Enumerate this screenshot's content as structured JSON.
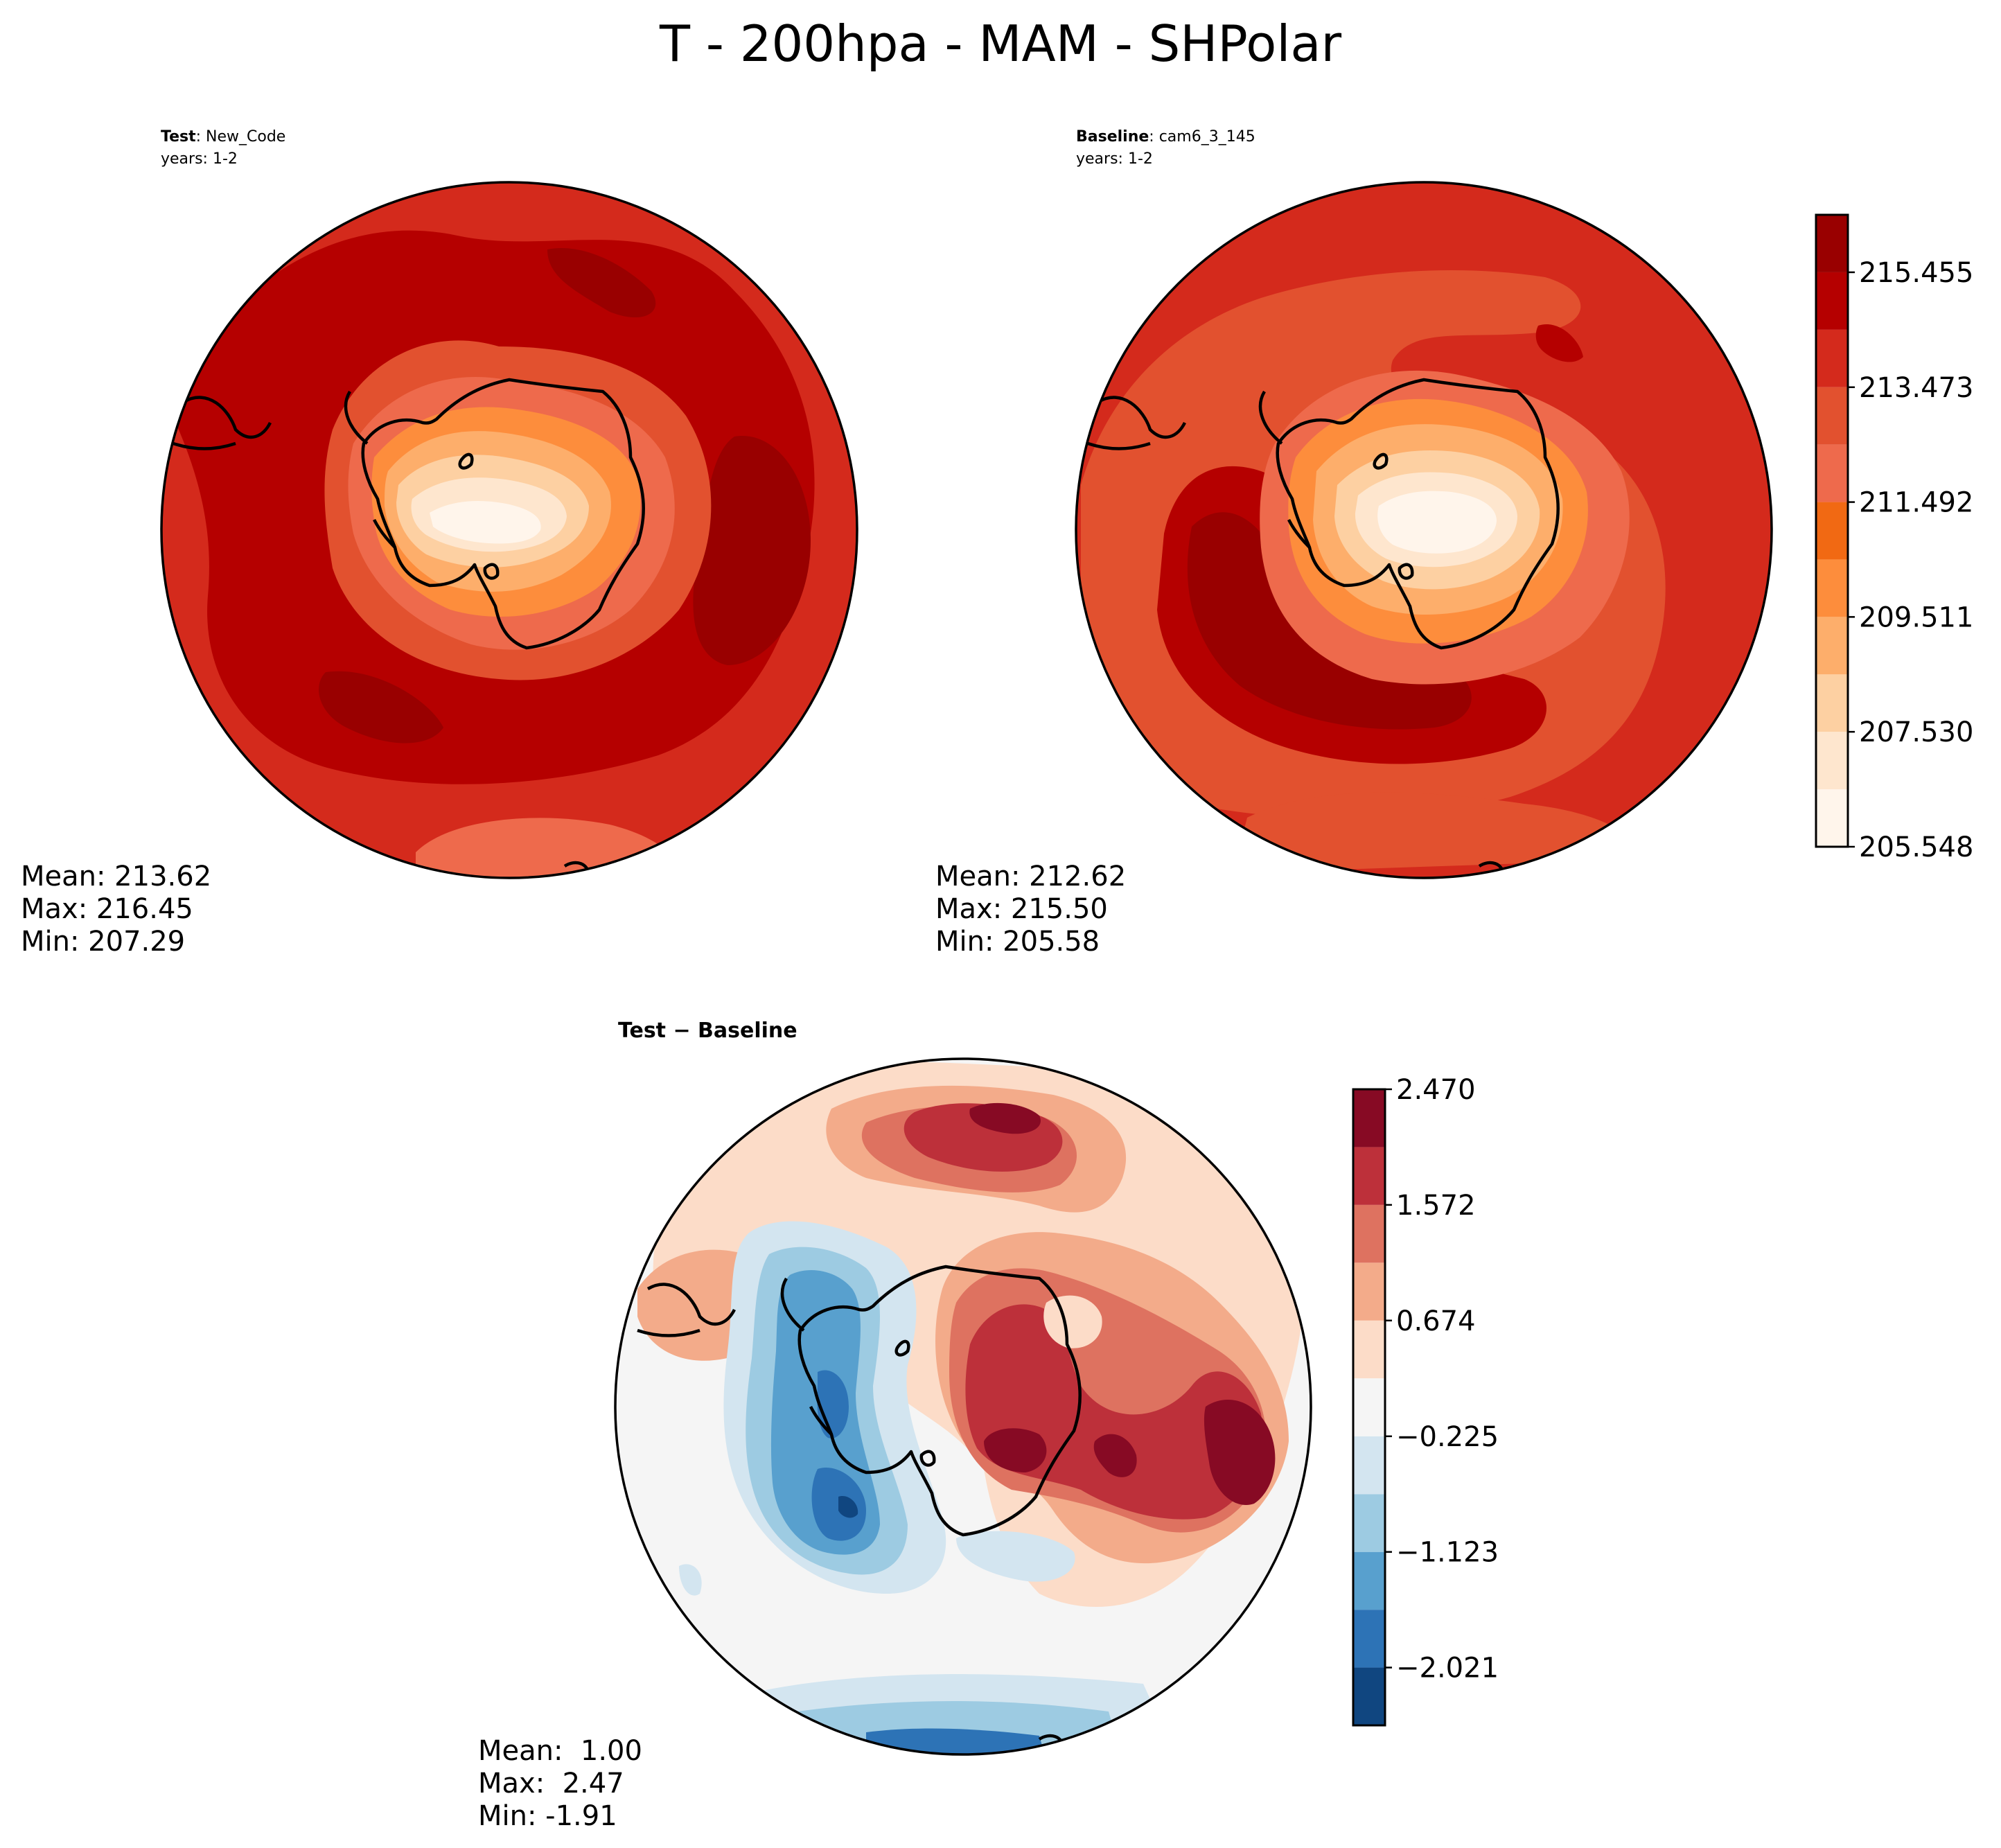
{
  "figure": {
    "title": "T - 200hpa - MAM - SHPolar"
  },
  "panels": {
    "test": {
      "label_bold": "Test",
      "label_rest": ": New_Code",
      "years": "years: 1-2",
      "stats": {
        "mean": "Mean: 213.62",
        "max": "Max: 216.45",
        "min": "Min: 207.29"
      }
    },
    "baseline": {
      "label_bold": "Baseline",
      "label_rest": ": cam6_3_145",
      "years": "years: 1-2",
      "stats": {
        "mean": "Mean: 212.62",
        "max": "Max: 215.50",
        "min": "Min: 205.58"
      }
    },
    "diff": {
      "label": "Test − Baseline",
      "stats": {
        "mean": "Mean:  1.00",
        "max": "Max:  2.47",
        "min": "Min: -1.91"
      }
    }
  },
  "colorbars": {
    "absolute": {
      "levels": [
        205.548,
        206.539,
        207.53,
        208.52,
        209.511,
        210.502,
        211.492,
        212.483,
        213.473,
        214.464,
        215.455,
        216.446
      ],
      "tick_labels": [
        "205.548",
        "207.530",
        "209.511",
        "211.492",
        "213.473",
        "215.455"
      ],
      "colors": [
        "#fff5eb",
        "#fee6ce",
        "#fdd0a2",
        "#fdae6b",
        "#fd8d3c",
        "#f16913",
        "#ee6a4c",
        "#e2512f",
        "#d42a1c",
        "#b50000",
        "#990000"
      ]
    },
    "difference": {
      "levels": [
        -2.47,
        -2.021,
        -1.572,
        -1.123,
        -0.674,
        -0.225,
        0.225,
        0.674,
        1.123,
        1.572,
        2.021,
        2.47
      ],
      "tick_labels": [
        "−2.021",
        "−1.123",
        "−0.225",
        "0.674",
        "1.572",
        "2.470"
      ],
      "colors": [
        "#104680",
        "#2d73b6",
        "#58a0ce",
        "#9dcbe2",
        "#d3e5f0",
        "#f5f5f5",
        "#fcdcc8",
        "#f3ab8a",
        "#de7260",
        "#bd303a",
        "#870a24"
      ]
    }
  }
}
